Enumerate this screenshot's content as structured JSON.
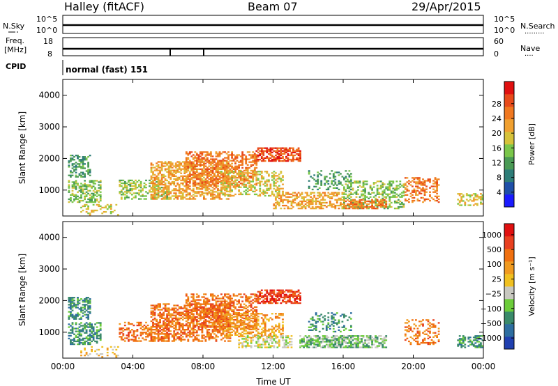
{
  "header": {
    "station": "Halley (fitACF)",
    "beam": "Beam 07",
    "date": "29/Apr/2015"
  },
  "strips": {
    "nsky_label": "N.Sky",
    "nsky_ticks": [
      "10^5",
      "10^0"
    ],
    "nsearch_label": "N.Search",
    "nsearch_ticks": [
      "10^5",
      "10^0"
    ],
    "freq_label_top": "Freq.",
    "freq_label_unit": "[MHz]",
    "freq_ticks": [
      "18",
      "8"
    ],
    "nave_label": "Nave",
    "nave_ticks": [
      "60",
      "0"
    ],
    "cpid_label": "CPID",
    "cpid_value": "normal (fast) 151"
  },
  "chart_data": [
    {
      "type": "heatmap",
      "title": "",
      "xlabel": "Time UT",
      "ylabel": "Slant Range [km]",
      "xlim": [
        0,
        24
      ],
      "ylim": [
        180,
        4500
      ],
      "x_tick_labels": [
        "00:00",
        "04:00",
        "08:00",
        "12:00",
        "16:00",
        "20:00",
        "00:00"
      ],
      "y_ticks": [
        1000,
        2000,
        3000,
        4000
      ],
      "colorbar": {
        "label": "Power [dB]",
        "ticks": [
          "4",
          "8",
          "12",
          "16",
          "20",
          "24",
          "28"
        ],
        "colors": [
          "#1a1aff",
          "#1f4fa8",
          "#2e7d78",
          "#4a9a55",
          "#7ac64a",
          "#d6c23a",
          "#f0a030",
          "#f07820",
          "#e84a1a",
          "#e01010"
        ]
      },
      "regions": [
        {
          "t0": 0.3,
          "t1": 1.6,
          "r0": 1400,
          "r1": 2100,
          "c": 3,
          "d": 0.5
        },
        {
          "t0": 0.3,
          "t1": 2.2,
          "r0": 600,
          "r1": 1300,
          "c": 4,
          "d": 0.5
        },
        {
          "t0": 1.0,
          "t1": 3.2,
          "r0": 200,
          "r1": 550,
          "c": 5,
          "d": 0.3
        },
        {
          "t0": 3.2,
          "t1": 6.0,
          "r0": 700,
          "r1": 1300,
          "c": 4,
          "d": 0.45
        },
        {
          "t0": 5.0,
          "t1": 9.5,
          "r0": 700,
          "r1": 1900,
          "c": 6,
          "d": 0.55
        },
        {
          "t0": 7.0,
          "t1": 11.0,
          "r0": 1100,
          "r1": 2200,
          "c": 7,
          "d": 0.5
        },
        {
          "t0": 9.0,
          "t1": 12.5,
          "r0": 800,
          "r1": 1600,
          "c": 5,
          "d": 0.4
        },
        {
          "t0": 11.0,
          "t1": 13.5,
          "r0": 1900,
          "r1": 2350,
          "c": 8,
          "d": 0.65
        },
        {
          "t0": 12.0,
          "t1": 16.0,
          "r0": 400,
          "r1": 900,
          "c": 6,
          "d": 0.5
        },
        {
          "t0": 14.0,
          "t1": 16.5,
          "r0": 1000,
          "r1": 1600,
          "c": 3,
          "d": 0.3
        },
        {
          "t0": 16.0,
          "t1": 19.5,
          "r0": 400,
          "r1": 1300,
          "c": 4,
          "d": 0.4
        },
        {
          "t0": 16.0,
          "t1": 18.5,
          "r0": 400,
          "r1": 700,
          "c": 7,
          "d": 0.5
        },
        {
          "t0": 19.5,
          "t1": 21.5,
          "r0": 600,
          "r1": 1400,
          "c": 7,
          "d": 0.35
        },
        {
          "t0": 22.5,
          "t1": 24.0,
          "r0": 500,
          "r1": 900,
          "c": 5,
          "d": 0.45
        }
      ]
    },
    {
      "type": "heatmap",
      "title": "",
      "xlabel": "Time UT",
      "ylabel": "Slant Range [km]",
      "xlim": [
        0,
        24
      ],
      "ylim": [
        180,
        4500
      ],
      "x_tick_labels": [
        "00:00",
        "04:00",
        "08:00",
        "12:00",
        "16:00",
        "20:00",
        "00:00"
      ],
      "y_ticks": [
        1000,
        2000,
        3000,
        4000
      ],
      "colorbar": {
        "label": "Velocity [m s⁻¹]",
        "ticks": [
          "1000",
          "500",
          "100",
          "25",
          "−25",
          "−100",
          "−500",
          "−1000"
        ],
        "colors": [
          "#2040b0",
          "#2e6ea0",
          "#3a8a6a",
          "#6ccc3a",
          "#c8c8c0",
          "#f0c020",
          "#f09a20",
          "#f07010",
          "#e84020",
          "#e01010"
        ]
      },
      "regions": [
        {
          "t0": 0.3,
          "t1": 1.6,
          "r0": 1400,
          "r1": 2100,
          "c": 2,
          "d": 0.5
        },
        {
          "t0": 0.3,
          "t1": 2.2,
          "r0": 600,
          "r1": 1300,
          "c": 2,
          "d": 0.5
        },
        {
          "t0": 1.0,
          "t1": 3.2,
          "r0": 200,
          "r1": 550,
          "c": 5,
          "d": 0.3
        },
        {
          "t0": 3.2,
          "t1": 6.0,
          "r0": 700,
          "r1": 1300,
          "c": 7,
          "d": 0.45
        },
        {
          "t0": 5.0,
          "t1": 9.5,
          "r0": 700,
          "r1": 1900,
          "c": 7,
          "d": 0.55
        },
        {
          "t0": 7.0,
          "t1": 11.0,
          "r0": 1100,
          "r1": 2200,
          "c": 7,
          "d": 0.5
        },
        {
          "t0": 9.0,
          "t1": 12.5,
          "r0": 800,
          "r1": 1600,
          "c": 6,
          "d": 0.4
        },
        {
          "t0": 11.0,
          "t1": 13.5,
          "r0": 1900,
          "r1": 2350,
          "c": 8,
          "d": 0.65
        },
        {
          "t0": 10.0,
          "t1": 13.0,
          "r0": 500,
          "r1": 900,
          "c": 4,
          "d": 0.45
        },
        {
          "t0": 13.5,
          "t1": 18.5,
          "r0": 500,
          "r1": 900,
          "c": 3,
          "d": 0.7
        },
        {
          "t0": 14.0,
          "t1": 16.5,
          "r0": 1000,
          "r1": 1600,
          "c": 2,
          "d": 0.25
        },
        {
          "t0": 19.5,
          "t1": 21.5,
          "r0": 600,
          "r1": 1400,
          "c": 7,
          "d": 0.35
        },
        {
          "t0": 22.5,
          "t1": 24.0,
          "r0": 500,
          "r1": 900,
          "c": 2,
          "d": 0.45
        }
      ]
    }
  ]
}
